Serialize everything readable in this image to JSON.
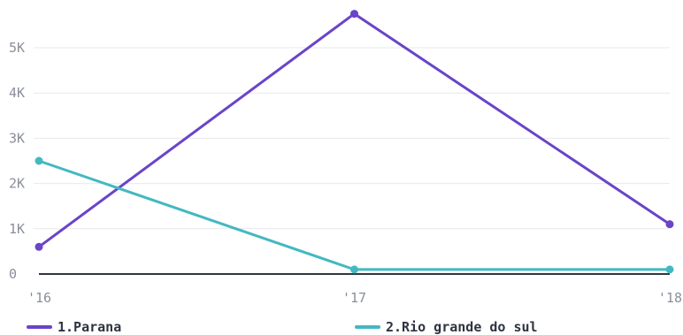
{
  "chart_data": {
    "type": "line",
    "categories": [
      "'16",
      "'17",
      "'18"
    ],
    "y_ticks": [
      {
        "value": 0,
        "label": "0"
      },
      {
        "value": 1000,
        "label": "1K"
      },
      {
        "value": 2000,
        "label": "2K"
      },
      {
        "value": 3000,
        "label": "3K"
      },
      {
        "value": 4000,
        "label": "4K"
      },
      {
        "value": 5000,
        "label": "5K"
      }
    ],
    "ylim": [
      0,
      5900
    ],
    "grid": true,
    "legend_position": "bottom",
    "series": [
      {
        "name": "1.Parana",
        "color": "#6a44c9",
        "values": [
          600,
          5750,
          1100
        ]
      },
      {
        "name": "2.Rio grande do sul",
        "color": "#43b8c2",
        "values": [
          2500,
          100,
          100
        ]
      }
    ]
  }
}
